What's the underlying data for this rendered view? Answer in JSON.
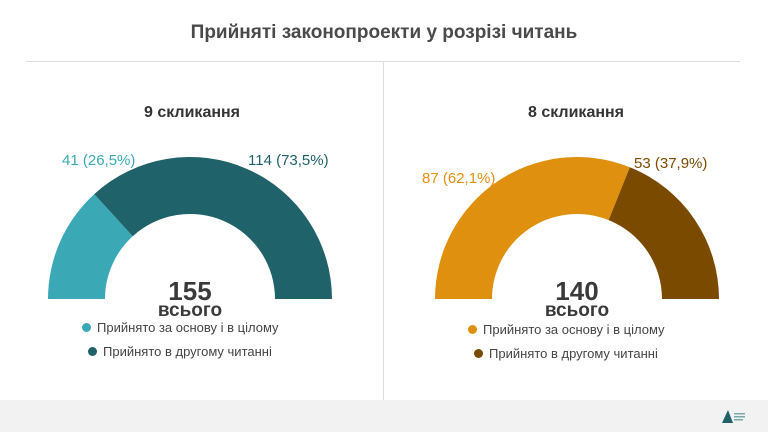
{
  "title": "Прийняті законопроекти у розрізі читань",
  "chart_data": [
    {
      "type": "pie",
      "subtype": "half-donut",
      "title": "9 скликання",
      "total": 155,
      "total_label": "всього",
      "categories": [
        "Прийнято за основу і в цілому",
        "Прийнято в другому читанні"
      ],
      "values": [
        41,
        114
      ],
      "labels": [
        "41 (26,5%)",
        "114 (73,5%)"
      ],
      "colors": [
        "#3aa8b5",
        "#1f6269"
      ]
    },
    {
      "type": "pie",
      "subtype": "half-donut",
      "title": "8 скликання",
      "total": 140,
      "total_label": "всього",
      "categories": [
        "Прийнято за основу і в цілому",
        "Прийнято в другому читанні"
      ],
      "values": [
        87,
        53
      ],
      "labels": [
        "87 (62,1%)",
        "53 (37,9%)"
      ],
      "colors": [
        "#e0900f",
        "#7a4a00"
      ]
    }
  ]
}
